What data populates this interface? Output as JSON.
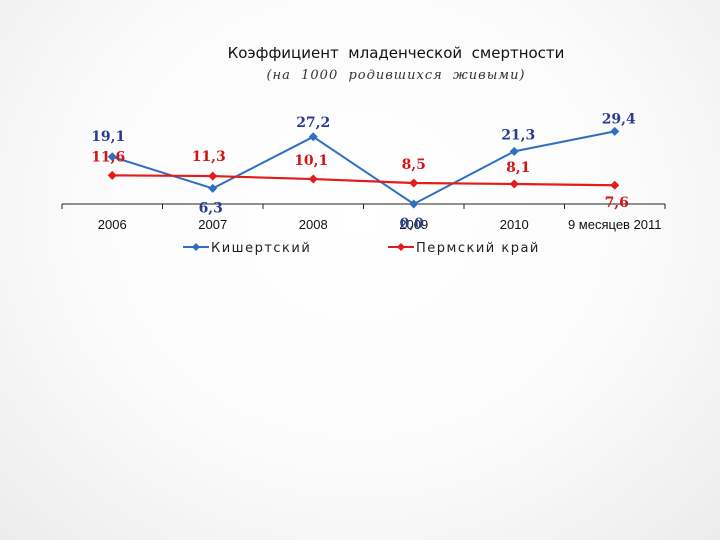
{
  "chart_data": {
    "type": "line",
    "title": "Коэффициент  младенческой  смертности",
    "subtitle": "(на  1000  родившихся  живыми)",
    "categories": [
      "2006",
      "2007",
      "2008",
      "2009",
      "2010",
      "9 месяцев  2011"
    ],
    "series": [
      {
        "name": "Кишертский",
        "color": "#2e6fbf",
        "label_color": "#2a3c8f",
        "values": [
          19.1,
          6.3,
          27.2,
          0.0,
          21.3,
          29.4
        ],
        "labels": [
          "19,1",
          "6,3",
          "27,2",
          "0,0",
          "21,3",
          "29,4"
        ]
      },
      {
        "name": "Пермский край",
        "color": "#e31b1b",
        "label_color": "#d21414",
        "values": [
          11.6,
          11.3,
          10.1,
          8.5,
          8.1,
          7.6
        ],
        "labels": [
          "11,6",
          "11,3",
          "10,1",
          "8,5",
          "8,1",
          "7,6"
        ]
      }
    ],
    "ylim": [
      0,
      34
    ],
    "grid": false,
    "legend": "bottom"
  }
}
